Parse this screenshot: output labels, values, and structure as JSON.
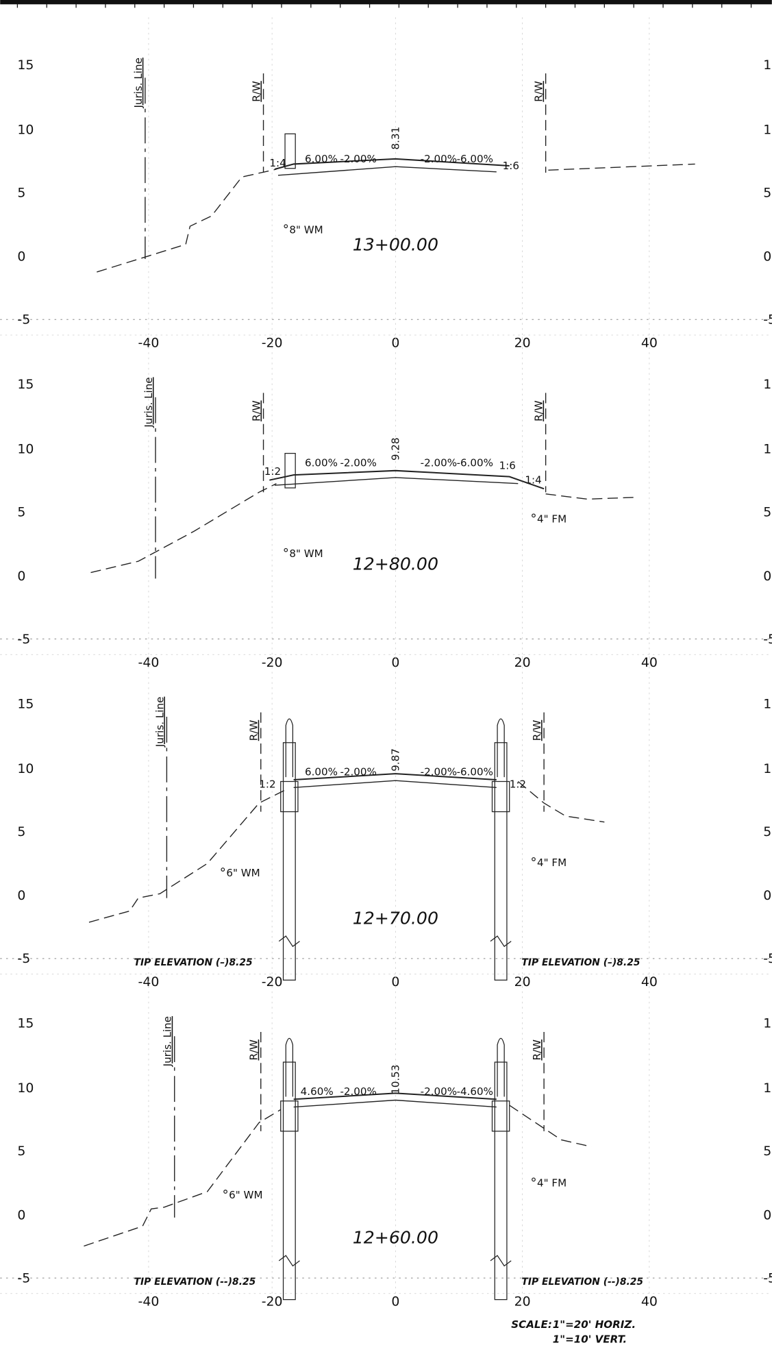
{
  "y_axis_labels": [
    "15",
    "10",
    "5",
    "0",
    "-5"
  ],
  "x_axis_labels": [
    "-40",
    "-20",
    "0",
    "20",
    "40"
  ],
  "sections": [
    {
      "station": "13+00.00",
      "juris_label": "Juris. Line",
      "rw_labels": [
        "R/W",
        "R/W"
      ],
      "slopes": [
        "6.00%",
        "-2.00%",
        "-2.00%",
        "-6.00%"
      ],
      "elevation": "8.31",
      "side_slopes": [
        "1:4",
        "1:6"
      ],
      "utilities": [
        "8\" WM"
      ],
      "tip_elevations": []
    },
    {
      "station": "12+80.00",
      "juris_label": "Juris. Line",
      "rw_labels": [
        "R/W",
        "R/W"
      ],
      "slopes": [
        "6.00%",
        "-2.00%",
        "-2.00%",
        "-6.00%"
      ],
      "elevation": "9.28",
      "side_slopes": [
        "1:2",
        "1:6",
        "1:4"
      ],
      "utilities": [
        "8\" WM",
        "4\" FM"
      ],
      "tip_elevations": []
    },
    {
      "station": "12+70.00",
      "juris_label": "Juris. Line",
      "rw_labels": [
        "R/W",
        "R/W"
      ],
      "slopes": [
        "6.00%",
        "-2.00%",
        "-2.00%",
        "-6.00%"
      ],
      "elevation": "9.87",
      "side_slopes": [
        "1:2",
        "1:2"
      ],
      "utilities": [
        "6\" WM",
        "4\" FM"
      ],
      "tip_elevations": [
        "TIP ELEVATION (–)8.25",
        "TIP ELEVATION (–)8.25"
      ]
    },
    {
      "station": "12+60.00",
      "juris_label": "Juris. Line",
      "rw_labels": [
        "R/W",
        "R/W"
      ],
      "slopes": [
        "4.60%",
        "-2.00%",
        "-2.00%",
        "-4.60%"
      ],
      "elevation": "10.53",
      "side_slopes": [],
      "utilities": [
        "6\" WM",
        "4\" FM"
      ],
      "tip_elevations": [
        "TIP ELEVATION (--)8.25",
        "TIP ELEVATION (--)8.25"
      ]
    }
  ],
  "scale": {
    "label": "SCALE:",
    "horizontal": "1\"=20' HORIZ.",
    "vertical": "1\"=10' VERT."
  }
}
